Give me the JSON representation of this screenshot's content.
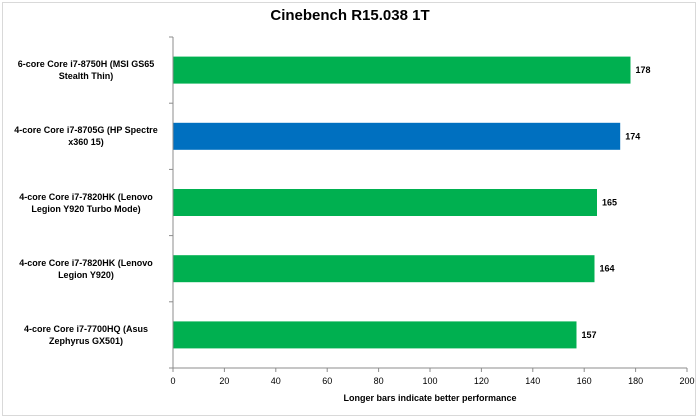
{
  "chart_data": {
    "type": "bar",
    "orientation": "horizontal",
    "title": "Cinebench R15.038 1T",
    "xlabel": "Longer bars indicate better performance",
    "ylabel": "",
    "xlim": [
      0,
      200
    ],
    "x_ticks": [
      0,
      20,
      40,
      60,
      80,
      100,
      120,
      140,
      160,
      180,
      200
    ],
    "grid": false,
    "legend": "none",
    "categories": [
      "6-core Core i7-8750H (MSI GS65 Stealth Thin)",
      "4-core Core i7-8705G (HP Spectre x360 15)",
      "4-core Core i7-7820HK (Lenovo Legion Y920 Turbo Mode)",
      "4-core Core i7-7820HK (Lenovo Legion Y920)",
      "4-core Core i7-7700HQ (Asus Zephyrus GX501)"
    ],
    "values": [
      178,
      174,
      165,
      164,
      157
    ],
    "bar_colors": [
      "#00b050",
      "#0070c0",
      "#00b050",
      "#00b050",
      "#00b050"
    ]
  }
}
